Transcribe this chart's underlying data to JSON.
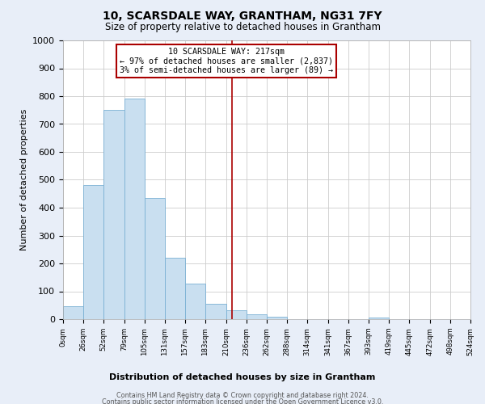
{
  "title": "10, SCARSDALE WAY, GRANTHAM, NG31 7FY",
  "subtitle": "Size of property relative to detached houses in Grantham",
  "xlabel": "Distribution of detached houses by size in Grantham",
  "ylabel": "Number of detached properties",
  "bin_edges": [
    0,
    26,
    52,
    79,
    105,
    131,
    157,
    183,
    210,
    236,
    262,
    288,
    314,
    341,
    367,
    393,
    419,
    445,
    472,
    498,
    524
  ],
  "bar_heights": [
    45,
    480,
    750,
    790,
    435,
    220,
    128,
    55,
    33,
    18,
    8,
    0,
    0,
    0,
    0,
    5,
    0,
    0,
    0,
    0
  ],
  "bar_color": "#c9dff0",
  "bar_edge_color": "#7ab0d4",
  "vline_x": 217,
  "vline_color": "#aa0000",
  "annotation_title": "10 SCARSDALE WAY: 217sqm",
  "annotation_line1": "← 97% of detached houses are smaller (2,837)",
  "annotation_line2": "3% of semi-detached houses are larger (89) →",
  "annotation_box_color": "#ffffff",
  "annotation_box_edge_color": "#aa0000",
  "tick_labels": [
    "0sqm",
    "26sqm",
    "52sqm",
    "79sqm",
    "105sqm",
    "131sqm",
    "157sqm",
    "183sqm",
    "210sqm",
    "236sqm",
    "262sqm",
    "288sqm",
    "314sqm",
    "341sqm",
    "367sqm",
    "393sqm",
    "419sqm",
    "445sqm",
    "472sqm",
    "498sqm",
    "524sqm"
  ],
  "ylim": [
    0,
    1000
  ],
  "yticks": [
    0,
    100,
    200,
    300,
    400,
    500,
    600,
    700,
    800,
    900,
    1000
  ],
  "footnote1": "Contains HM Land Registry data © Crown copyright and database right 2024.",
  "footnote2": "Contains public sector information licensed under the Open Government Licence v3.0.",
  "bg_color": "#e8eef8",
  "plot_bg_color": "#ffffff"
}
